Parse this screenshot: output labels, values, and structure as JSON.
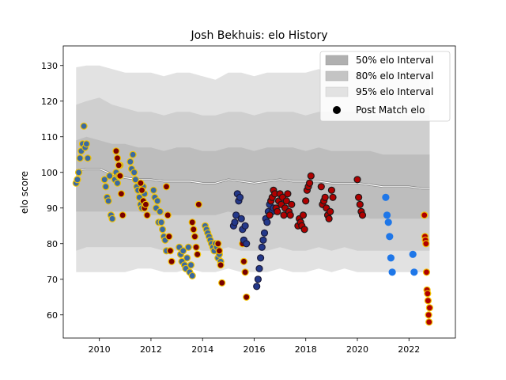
{
  "chart_data": {
    "type": "scatter",
    "title": "Josh Bekhuis: elo History",
    "xlabel": "",
    "ylabel": "elo score",
    "xlim": [
      2008.6,
      2023.8
    ],
    "ylim": [
      53.5,
      135.5
    ],
    "x_ticks": [
      2010,
      2012,
      2014,
      2016,
      2018,
      2020,
      2022
    ],
    "y_ticks": [
      60,
      70,
      80,
      90,
      100,
      110,
      120,
      130
    ],
    "x_tick_labels": [
      "2010",
      "2012",
      "2014",
      "2016",
      "2018",
      "2020",
      "2022"
    ],
    "y_tick_labels": [
      "60",
      "70",
      "80",
      "90",
      "100",
      "110",
      "120",
      "130"
    ],
    "grid": false,
    "legend_position": "top-right",
    "legend": [
      {
        "label": "50% elo Interval",
        "kind": "band",
        "color": "#b0b0b0"
      },
      {
        "label": "80% elo Interval",
        "kind": "band",
        "color": "#c4c4c4"
      },
      {
        "label": "95% elo Interval",
        "kind": "band",
        "color": "#e2e2e2"
      },
      {
        "label": "Post Match elo",
        "kind": "marker",
        "color": "#000000"
      }
    ],
    "interval_x": [
      2009.1,
      2009.5,
      2010.0,
      2010.5,
      2011.0,
      2011.5,
      2012.0,
      2012.5,
      2013.0,
      2013.5,
      2014.0,
      2014.5,
      2015.0,
      2015.5,
      2016.0,
      2016.5,
      2017.0,
      2017.5,
      2018.0,
      2018.5,
      2019.0,
      2019.5,
      2020.0,
      2020.5,
      2021.0,
      2021.5,
      2022.0,
      2022.5,
      2022.8
    ],
    "band95_upper": [
      129.5,
      130,
      130,
      129,
      128,
      128,
      128,
      127,
      128,
      128,
      127,
      126,
      128,
      128,
      127,
      128,
      128,
      128,
      128,
      129,
      128,
      129,
      128,
      128,
      129,
      128,
      129,
      129,
      129
    ],
    "band95_lower": [
      72,
      72,
      72,
      72,
      72,
      73,
      73,
      72,
      72,
      73,
      72,
      72,
      73,
      72,
      72,
      72,
      73,
      72,
      72,
      73,
      72,
      73,
      72,
      72,
      72,
      72,
      72,
      72,
      72
    ],
    "band80_upper": [
      119,
      120,
      121,
      119,
      118,
      117,
      117,
      116,
      117,
      117,
      116,
      116,
      117,
      117,
      116,
      117,
      117,
      117,
      116,
      117,
      117,
      117,
      117,
      116,
      116,
      116,
      116,
      116,
      116
    ],
    "band80_lower": [
      78,
      79,
      79,
      79,
      79,
      79,
      79,
      78,
      78,
      79,
      78,
      78,
      79,
      78,
      78,
      78,
      79,
      78,
      78,
      79,
      78,
      79,
      78,
      78,
      78,
      78,
      78,
      78,
      78
    ],
    "band50_upper": [
      109,
      110,
      109,
      108,
      108,
      107,
      107,
      106,
      107,
      107,
      106,
      106,
      107,
      107,
      106,
      107,
      107,
      107,
      106,
      107,
      106,
      106,
      106,
      106,
      105,
      105,
      105,
      105,
      105
    ],
    "band50_lower": [
      89,
      89,
      89,
      89,
      89,
      89,
      88,
      88,
      88,
      88,
      88,
      88,
      89,
      88,
      88,
      88,
      88,
      88,
      88,
      88,
      88,
      88,
      88,
      87,
      87,
      87,
      87,
      87,
      87
    ],
    "mean_line": [
      100.5,
      101,
      101,
      99.5,
      98.5,
      98,
      98,
      97.5,
      97.5,
      97.5,
      97,
      97,
      98,
      97.5,
      97,
      97.5,
      98,
      97.5,
      97.5,
      97.5,
      97,
      97,
      97,
      96.5,
      96,
      96,
      96,
      95.5,
      95.5
    ],
    "series": [
      {
        "color": "#3b6aa0",
        "edgecolor": "#f2c200",
        "x": [
          2009.1,
          2009.15,
          2009.2,
          2009.25,
          2009.3,
          2009.35,
          2009.4,
          2009.45,
          2009.5,
          2009.55,
          2010.2,
          2010.25,
          2010.3,
          2010.35,
          2010.4,
          2010.45,
          2010.5,
          2010.6,
          2010.65,
          2010.7,
          2010.75,
          2010.8,
          2011.2,
          2011.25,
          2011.3,
          2011.35,
          2011.4,
          2011.45,
          2011.5,
          2011.55,
          2011.6,
          2011.65,
          2011.7,
          2011.75,
          2012.1,
          2012.15,
          2012.2,
          2012.25,
          2012.3,
          2012.35,
          2012.4,
          2012.45,
          2012.5,
          2012.55,
          2012.6,
          2013.1,
          2013.15,
          2013.2,
          2013.25,
          2013.3,
          2013.35,
          2013.4,
          2013.45,
          2013.5,
          2013.55,
          2013.6,
          2014.1,
          2014.15,
          2014.2,
          2014.25,
          2014.3,
          2014.35,
          2014.4,
          2014.45,
          2014.5,
          2014.55,
          2014.6,
          2014.65,
          2014.7
        ],
        "y": [
          97,
          98,
          100,
          104,
          106,
          108,
          113,
          107,
          108,
          104,
          98,
          96,
          93,
          92,
          99,
          88,
          87,
          98,
          100,
          97,
          99,
          102,
          103,
          101,
          105,
          100,
          98,
          96,
          95,
          93,
          91,
          90,
          96,
          94,
          95,
          93,
          90,
          92,
          86,
          89,
          86,
          84,
          82,
          81,
          78,
          79,
          77,
          75,
          78,
          74,
          73,
          76,
          79,
          72,
          74,
          71,
          85,
          84,
          83,
          82,
          81,
          80,
          79,
          78,
          80,
          79,
          76,
          77,
          75
        ]
      },
      {
        "color": "#7a0000",
        "edgecolor": "#f2c200",
        "x": [
          2010.65,
          2010.7,
          2010.75,
          2010.8,
          2010.85,
          2010.9,
          2011.6,
          2011.65,
          2011.7,
          2011.75,
          2011.8,
          2011.85,
          2012.6,
          2012.65,
          2012.7,
          2012.75,
          2012.8,
          2013.6,
          2013.65,
          2013.7,
          2013.75,
          2013.8,
          2013.85,
          2014.6,
          2014.65,
          2014.7,
          2014.75,
          2015.55,
          2015.6,
          2015.65,
          2015.7
        ],
        "y": [
          106,
          104,
          102,
          99,
          94,
          88,
          97,
          95,
          92,
          90,
          91,
          88,
          96,
          88,
          82,
          78,
          75,
          86,
          84,
          82,
          79,
          77,
          91,
          80,
          78,
          74,
          69,
          80,
          75,
          72,
          65
        ]
      },
      {
        "color": "#23388a",
        "edgecolor": "#1a1a3a",
        "x": [
          2015.2,
          2015.25,
          2015.3,
          2015.35,
          2015.4,
          2015.45,
          2015.5,
          2015.55,
          2015.6,
          2015.65,
          2015.7,
          2016.1,
          2016.15,
          2016.2,
          2016.25,
          2016.3,
          2016.35,
          2016.4,
          2016.45,
          2016.5,
          2016.55,
          2016.6,
          2016.65,
          2016.7,
          2016.75
        ],
        "y": [
          85,
          86,
          88,
          94,
          92,
          93,
          87,
          84,
          81,
          85,
          80,
          68,
          70,
          73,
          76,
          79,
          81,
          83,
          87,
          86,
          89,
          91,
          92,
          89,
          90
        ]
      },
      {
        "color": "#b00000",
        "edgecolor": "#1a1a1a",
        "x": [
          2016.6,
          2016.65,
          2016.7,
          2016.75,
          2016.8,
          2016.85,
          2016.9,
          2016.95,
          2017.0,
          2017.05,
          2017.1,
          2017.15,
          2017.2,
          2017.25,
          2017.3,
          2017.35,
          2017.4,
          2017.45,
          2017.7,
          2017.75,
          2017.8,
          2017.85,
          2017.9,
          2017.95,
          2018.0,
          2018.05,
          2018.1,
          2018.15,
          2018.2,
          2018.6,
          2018.65,
          2018.7,
          2018.75,
          2018.8,
          2018.85,
          2018.9,
          2018.95,
          2019.0,
          2019.05,
          2020.0,
          2020.05,
          2020.1,
          2020.15,
          2020.2
        ],
        "y": [
          88,
          92,
          93,
          95,
          94,
          90,
          89,
          92,
          94,
          91,
          93,
          88,
          90,
          92,
          94,
          89,
          88,
          91,
          85,
          87,
          86,
          85,
          88,
          84,
          92,
          95,
          96,
          97,
          99,
          96,
          91,
          92,
          93,
          90,
          88,
          87,
          89,
          95,
          93,
          98,
          93,
          91,
          89,
          88
        ]
      },
      {
        "color": "#1f77e8",
        "edgecolor": "#1f77e8",
        "x": [
          2021.1,
          2021.15,
          2021.2,
          2021.25,
          2021.3,
          2021.35,
          2022.15,
          2022.2
        ],
        "y": [
          93,
          88,
          86,
          82,
          76,
          72,
          77,
          72
        ]
      },
      {
        "color": "#b00000",
        "edgecolor": "#f2c200",
        "x": [
          2022.6,
          2022.62,
          2022.64,
          2022.66,
          2022.68,
          2022.7,
          2022.72,
          2022.74,
          2022.76,
          2022.78,
          2022.8
        ],
        "y": [
          88,
          82,
          81,
          80,
          72,
          67,
          66,
          64,
          60,
          58,
          62
        ]
      }
    ]
  }
}
